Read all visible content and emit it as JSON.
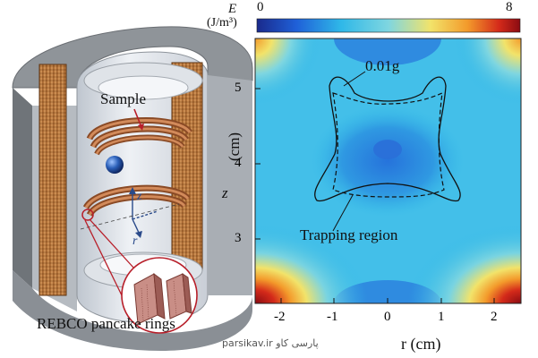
{
  "left_figure": {
    "sample_label": "Sample",
    "z_axis_label": "z",
    "r_axis_label": "r",
    "rebco_label": "REBCO pancake rings"
  },
  "right_figure": {
    "colorbar": {
      "quantity": "E",
      "unit": "(J/m³)",
      "min_label": "0",
      "max_label": "8",
      "colors": [
        "#1a2a8c",
        "#1f60d8",
        "#2fb8e8",
        "#7fd6e0",
        "#f2e36a",
        "#f39a2b",
        "#d42a1a",
        "#8a0b12"
      ]
    },
    "contour_label": "0.01g",
    "trapping_label": "Trapping region",
    "z_label": "z",
    "z_unit": "(cm)",
    "r_label": "r (cm)",
    "y_ticks": [
      "5",
      "4",
      "3"
    ],
    "x_ticks": [
      "-2",
      "-1",
      "0",
      "1",
      "2"
    ]
  },
  "watermark": "parsikav.ir  پارسی کاو"
}
